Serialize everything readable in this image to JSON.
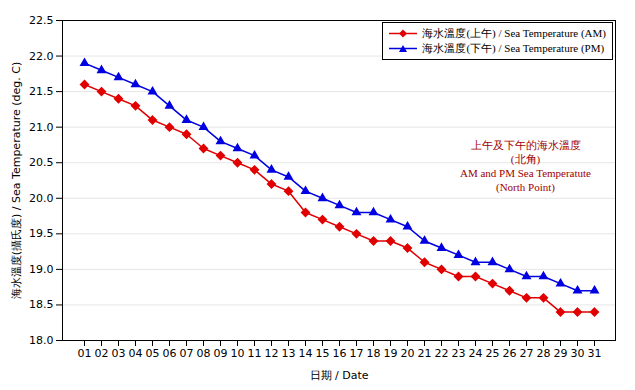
{
  "chart_data": {
    "type": "line",
    "annotation": "上午及下午的海水溫度\n(北角)\nAM and PM Sea Temperatute\n(North Point)",
    "x_label": "日期 / Date",
    "y_label": "海水溫度(攝氏度) / Sea Temperature (deg. C)",
    "categories": [
      "01",
      "02",
      "03",
      "04",
      "05",
      "06",
      "07",
      "08",
      "09",
      "10",
      "11",
      "12",
      "13",
      "14",
      "15",
      "16",
      "17",
      "18",
      "19",
      "20",
      "21",
      "22",
      "23",
      "24",
      "25",
      "26",
      "27",
      "28",
      "29",
      "30",
      "31"
    ],
    "series": [
      {
        "name": "海水溫度(上午) / Sea Temperature (AM)",
        "color": "#e00000",
        "marker": "diamond",
        "values": [
          21.6,
          21.5,
          21.4,
          21.3,
          21.1,
          21.0,
          20.9,
          20.7,
          20.6,
          20.5,
          20.4,
          20.2,
          20.1,
          19.8,
          19.7,
          19.6,
          19.5,
          19.4,
          19.4,
          19.3,
          19.1,
          19.0,
          18.9,
          18.9,
          18.8,
          18.7,
          18.6,
          18.6,
          18.4,
          18.4,
          18.4
        ]
      },
      {
        "name": "海水溫度(下午) / Sea Temperature (PM)",
        "color": "#0000e0",
        "marker": "triangle",
        "values": [
          21.9,
          21.8,
          21.7,
          21.6,
          21.5,
          21.3,
          21.1,
          21.0,
          20.8,
          20.7,
          20.6,
          20.4,
          20.3,
          20.1,
          20.0,
          19.9,
          19.8,
          19.8,
          19.7,
          19.6,
          19.4,
          19.3,
          19.2,
          19.1,
          19.1,
          19.0,
          18.9,
          18.9,
          18.8,
          18.7,
          18.7
        ]
      }
    ],
    "ylim": [
      18.0,
      22.5
    ],
    "yticks": [
      {
        "value": 18.0,
        "label": "18.0"
      },
      {
        "value": 18.5,
        "label": "18.5"
      },
      {
        "value": 19.0,
        "label": "19.0"
      },
      {
        "value": 19.5,
        "label": "19.5"
      },
      {
        "value": 20.0,
        "label": "20.0"
      },
      {
        "value": 20.5,
        "label": "20.5"
      },
      {
        "value": 21.0,
        "label": "21.0"
      },
      {
        "value": 21.5,
        "label": "21.5"
      },
      {
        "value": 22.0,
        "label": "22.0"
      },
      {
        "value": 22.5,
        "label": "22.5"
      }
    ],
    "grid": true,
    "legend": "top-right"
  }
}
